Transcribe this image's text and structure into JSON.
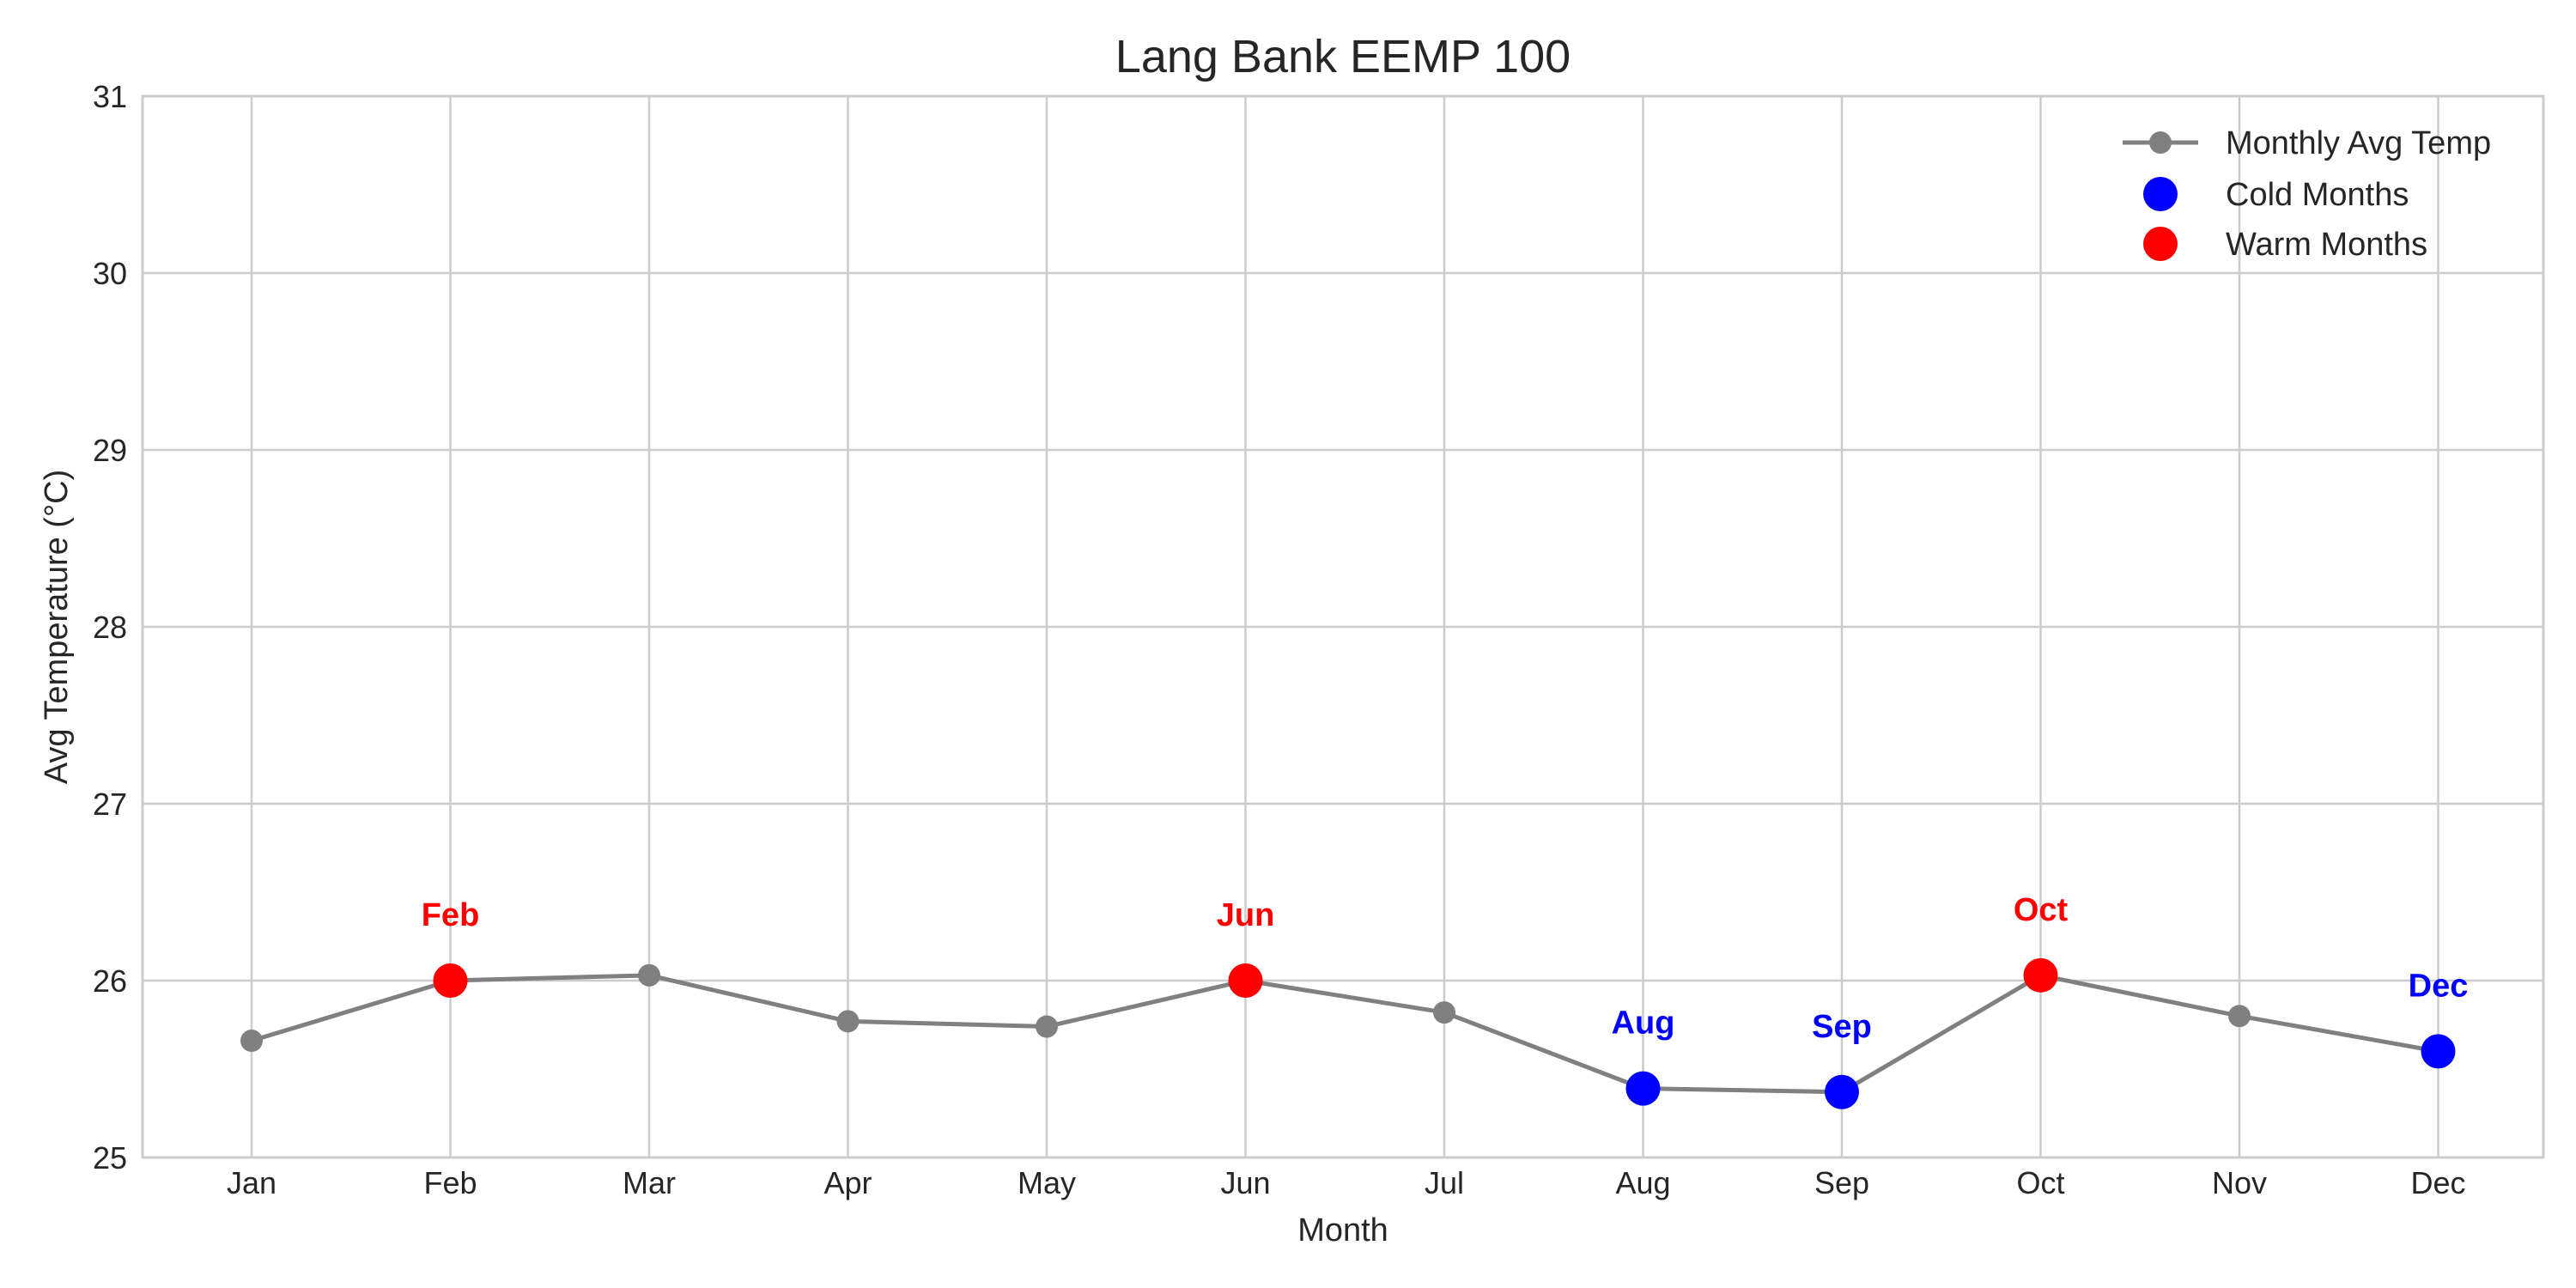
{
  "chart_data": {
    "type": "line",
    "title": "Lang Bank EEMP 100",
    "xlabel": "Month",
    "ylabel": "Avg Temperature (°C)",
    "categories": [
      "Jan",
      "Feb",
      "Mar",
      "Apr",
      "May",
      "Jun",
      "Jul",
      "Aug",
      "Sep",
      "Oct",
      "Nov",
      "Dec"
    ],
    "ylim": [
      25,
      31
    ],
    "yticks": [
      25,
      26,
      27,
      28,
      29,
      30,
      31
    ],
    "grid": true,
    "legend_position": "top-right",
    "series": [
      {
        "name": "Monthly Avg Temp",
        "color": "#808080",
        "values": [
          25.66,
          26.0,
          26.03,
          25.77,
          25.74,
          26.0,
          25.82,
          25.39,
          25.37,
          26.03,
          25.8,
          25.6
        ]
      }
    ],
    "highlights": [
      {
        "name": "Cold Months",
        "color": "#0000ff",
        "months": [
          "Aug",
          "Sep",
          "Dec"
        ]
      },
      {
        "name": "Warm Months",
        "color": "#ff0000",
        "months": [
          "Feb",
          "Jun",
          "Oct"
        ]
      }
    ],
    "annotations": [
      {
        "month": "Feb",
        "text": "Feb",
        "color": "#ff0000"
      },
      {
        "month": "Jun",
        "text": "Jun",
        "color": "#ff0000"
      },
      {
        "month": "Oct",
        "text": "Oct",
        "color": "#ff0000"
      },
      {
        "month": "Aug",
        "text": "Aug",
        "color": "#0000ff"
      },
      {
        "month": "Sep",
        "text": "Sep",
        "color": "#0000ff"
      },
      {
        "month": "Dec",
        "text": "Dec",
        "color": "#0000ff"
      }
    ]
  }
}
